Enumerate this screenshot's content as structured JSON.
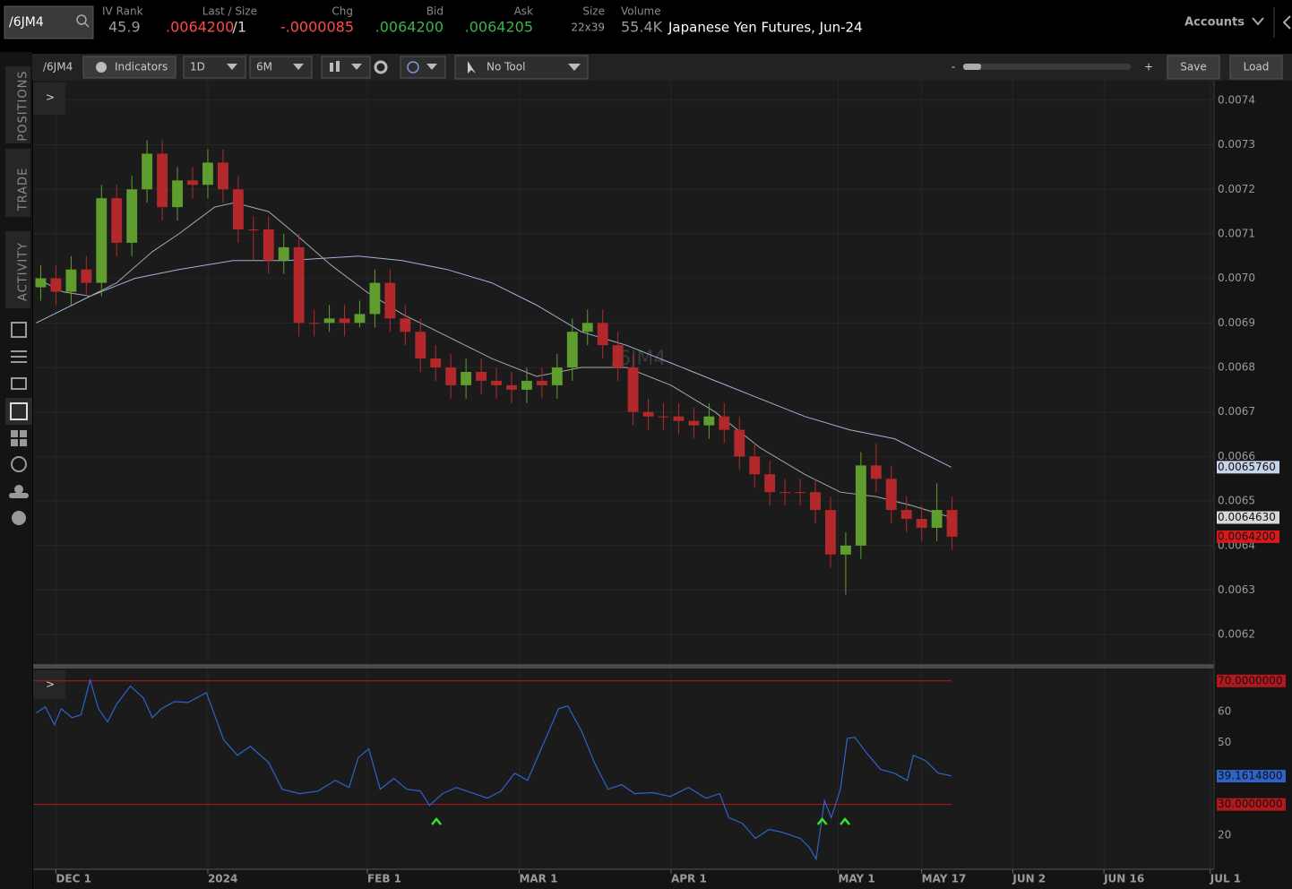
{
  "header": {
    "symbol_input": "/6JM4",
    "fields": [
      {
        "label": "IV Rank",
        "value": "45.9"
      },
      {
        "label": "Last / Size",
        "value": ".0064200",
        "extra": "/1"
      },
      {
        "label": "Chg",
        "value": "-.0000085"
      },
      {
        "label": "Bid",
        "value": ".0064200"
      },
      {
        "label": "Ask",
        "value": ".0064205"
      },
      {
        "label": "Size",
        "value": "22x39"
      },
      {
        "label": "Volume",
        "value": "55.4K"
      }
    ],
    "description": "Japanese Yen Futures, Jun-24",
    "accounts": "Accounts"
  },
  "toolbar": {
    "symbol": "/6JM4",
    "indicators": "Indicators",
    "aggregation": "1D",
    "range": "6M",
    "tool": "No Tool",
    "zoom_out": "-",
    "zoom_in": "+",
    "save": "Save",
    "load": "Load"
  },
  "sidebar": {
    "tabs": [
      "POSITIONS",
      "TRADE",
      "ACTIVITY"
    ]
  },
  "watermark": "/6JM4",
  "expand": ">",
  "x_axis": {
    "xlim": [
      -3,
      152.5
    ],
    "xticks": [
      {
        "value": 0,
        "label": "DEC 1"
      },
      {
        "value": 20,
        "label": "2024"
      },
      {
        "value": 41,
        "label": "FEB 1"
      },
      {
        "value": 61,
        "label": "MAR 1"
      },
      {
        "value": 81,
        "label": "APR 1"
      },
      {
        "value": 103,
        "label": "MAY 1"
      },
      {
        "value": 114,
        "label": "MAY 17"
      },
      {
        "value": 126,
        "label": "JUN 2"
      },
      {
        "value": 138,
        "label": "JUN 16"
      },
      {
        "value": 152,
        "label": "JUL 1"
      }
    ]
  },
  "price_chart": {
    "type": "candlestick",
    "up_color": "#5f9e2e",
    "down_color": "#b3292b",
    "ylim": [
      0.006136,
      0.007444
    ],
    "yticks": [
      0.0062,
      0.0063,
      0.0064,
      0.0065,
      0.0066,
      0.0067,
      0.0068,
      0.0069,
      {
        "value": 0.007,
        "label": "0.0070"
      },
      0.0071,
      0.0072,
      0.0073,
      0.0074
    ],
    "x": [
      -2,
      0,
      2,
      4,
      6,
      8,
      10,
      12,
      14,
      16,
      18,
      20,
      22,
      24,
      26,
      28,
      30,
      32,
      34,
      36,
      38,
      40,
      42,
      44,
      46,
      48,
      50,
      52,
      54,
      56,
      58,
      60,
      62,
      64,
      66,
      68,
      70,
      72,
      74,
      76,
      78,
      80,
      82,
      84,
      86,
      88,
      90,
      92,
      94,
      96,
      98,
      100,
      102,
      104,
      106,
      108,
      110,
      112,
      114,
      116,
      118
    ],
    "open": [
      0.00698,
      0.007,
      0.00697,
      0.00702,
      0.00699,
      0.00718,
      0.00708,
      0.0072,
      0.00728,
      0.00716,
      0.00722,
      0.00721,
      0.00726,
      0.0072,
      0.00711,
      0.00711,
      0.00704,
      0.00707,
      0.0069,
      0.0069,
      0.00691,
      0.0069,
      0.00692,
      0.00699,
      0.00691,
      0.00688,
      0.00682,
      0.0068,
      0.00676,
      0.00679,
      0.00677,
      0.00676,
      0.00675,
      0.00677,
      0.00676,
      0.0068,
      0.00688,
      0.0069,
      0.00685,
      0.0068,
      0.0067,
      0.00669,
      0.00669,
      0.00668,
      0.00667,
      0.00669,
      0.00666,
      0.0066,
      0.00656,
      0.00652,
      0.00652,
      0.00652,
      0.00648,
      0.00638,
      0.0064,
      0.00658,
      0.00655,
      0.00648,
      0.00646,
      0.00644,
      0.00648
    ],
    "high": [
      0.00703,
      0.00703,
      0.00705,
      0.00705,
      0.00721,
      0.00721,
      0.00723,
      0.00731,
      0.00731,
      0.00725,
      0.00725,
      0.00729,
      0.00729,
      0.00723,
      0.00714,
      0.00714,
      0.0071,
      0.0071,
      0.00693,
      0.00694,
      0.00694,
      0.00695,
      0.00702,
      0.00702,
      0.00694,
      0.00691,
      0.00685,
      0.00683,
      0.00682,
      0.00682,
      0.0068,
      0.00679,
      0.0068,
      0.0068,
      0.00683,
      0.00691,
      0.00693,
      0.00693,
      0.00688,
      0.00683,
      0.00673,
      0.00672,
      0.00672,
      0.00671,
      0.00672,
      0.00672,
      0.00669,
      0.00663,
      0.00659,
      0.00655,
      0.00655,
      0.00655,
      0.00651,
      0.00643,
      0.00661,
      0.00663,
      0.00658,
      0.00651,
      0.00649,
      0.00654,
      0.00651
    ],
    "low": [
      0.00695,
      0.00694,
      0.00694,
      0.00696,
      0.00696,
      0.00705,
      0.00705,
      0.00717,
      0.00713,
      0.00713,
      0.00718,
      0.00718,
      0.00717,
      0.00708,
      0.00704,
      0.00701,
      0.00701,
      0.00687,
      0.00687,
      0.00688,
      0.00687,
      0.00689,
      0.00689,
      0.00688,
      0.00685,
      0.00679,
      0.00677,
      0.00673,
      0.00673,
      0.00674,
      0.00673,
      0.00672,
      0.00672,
      0.00673,
      0.00673,
      0.00677,
      0.00685,
      0.00682,
      0.00677,
      0.00667,
      0.00666,
      0.00666,
      0.00665,
      0.00664,
      0.00664,
      0.00663,
      0.00657,
      0.00653,
      0.00649,
      0.00649,
      0.00649,
      0.00645,
      0.00635,
      0.00629,
      0.00637,
      0.00652,
      0.00645,
      0.00643,
      0.00641,
      0.00641,
      0.00639
    ],
    "close": [
      0.007,
      0.00697,
      0.00702,
      0.00699,
      0.00718,
      0.00708,
      0.0072,
      0.00728,
      0.00716,
      0.00722,
      0.00721,
      0.00726,
      0.0072,
      0.00711,
      0.00711,
      0.00704,
      0.00707,
      0.0069,
      0.0069,
      0.00691,
      0.0069,
      0.00692,
      0.00699,
      0.00691,
      0.00688,
      0.00682,
      0.0068,
      0.00676,
      0.00679,
      0.00677,
      0.00676,
      0.00675,
      0.00677,
      0.00676,
      0.0068,
      0.00688,
      0.0069,
      0.00685,
      0.0068,
      0.0067,
      0.00669,
      0.00669,
      0.00668,
      0.00667,
      0.00669,
      0.00666,
      0.0066,
      0.00656,
      0.00652,
      0.00652,
      0.00652,
      0.00648,
      0.00638,
      0.0064,
      0.00658,
      0.00655,
      0.00648,
      0.00646,
      0.00644,
      0.00648,
      0.00642
    ],
    "lines": [
      {
        "color": "#9fb3d6",
        "x": [
          -2.6,
          4.5,
          10.4,
          16.2,
          23.3,
          30.4,
          39.8,
          45.6,
          51.5,
          57.4,
          63.3,
          69.2,
          75.1,
          81,
          86.8,
          92.7,
          98.6,
          104.5,
          110.4,
          113.9,
          117.9
        ],
        "values": [
          0.0069,
          0.00696,
          0.007,
          0.00702,
          0.00704,
          0.00704,
          0.00705,
          0.00704,
          0.00702,
          0.00699,
          0.00694,
          0.00688,
          0.00685,
          0.00681,
          0.00677,
          0.00673,
          0.00669,
          0.00666,
          0.00664,
          0.00661,
          0.006576
        ],
        "last_label": "0.0065760",
        "label_bg": "#c7d3ea"
      },
      {
        "color": "#a8a8a8",
        "x": [
          -2.6,
          0.9,
          4.5,
          8,
          12.7,
          16.2,
          20.9,
          23.5,
          28,
          31.5,
          36.2,
          40.9,
          45.6,
          51.5,
          57.4,
          63.3,
          69.2,
          75.1,
          81,
          86.8,
          92.7,
          98.6,
          103.3,
          108,
          112.7,
          117.9
        ],
        "values": [
          0.007,
          0.00697,
          0.00696,
          0.00699,
          0.00706,
          0.0071,
          0.00716,
          0.00717,
          0.00715,
          0.0071,
          0.00703,
          0.00697,
          0.00692,
          0.00687,
          0.00682,
          0.00678,
          0.0068,
          0.0068,
          0.00676,
          0.0067,
          0.00662,
          0.00656,
          0.00652,
          0.00651,
          0.00649,
          0.006463
        ],
        "last_label": "0.0064630",
        "label_bg": "#d8d8d8"
      }
    ],
    "last_price": {
      "value": 0.00642,
      "label": "0.0064200",
      "color": "#d8191c"
    }
  },
  "rsi_chart": {
    "type": "line",
    "color": "#2f63c9",
    "ylim": [
      9,
      74
    ],
    "yticks": [
      20,
      50,
      60
    ],
    "reference_lines": [
      {
        "value": 70,
        "label": "70.0000000"
      },
      {
        "value": 30,
        "label": "30.0000000"
      }
    ],
    "reference_color": "#b3191c",
    "x": [
      -2.6,
      -1.4,
      -0.2,
      0.7,
      2.1,
      3.3,
      4.5,
      5.6,
      6.8,
      8,
      9.8,
      11.5,
      12.7,
      13.9,
      15.6,
      17.4,
      19.8,
      22.1,
      23.9,
      25.6,
      28,
      29.8,
      32.1,
      34.5,
      36.8,
      38.6,
      39.8,
      41.2,
      42.7,
      44.5,
      46.2,
      48,
      49.2,
      50.9,
      52.7,
      55.1,
      56.8,
      58.6,
      60.4,
      62.1,
      63.9,
      66.2,
      67.4,
      69.2,
      70.9,
      72.7,
      74.5,
      76.2,
      78.6,
      80.9,
      83.3,
      85.6,
      87.4,
      88.6,
      90.4,
      92.1,
      93.9,
      95.6,
      98,
      99.2,
      100.1,
      101.2,
      102.1,
      103.3,
      104.2,
      105.2,
      106.8,
      108.6,
      110.4,
      112.1,
      112.9,
      114.5,
      116.2,
      117.9
    ],
    "values": [
      59.6,
      61.6,
      55.8,
      61,
      58.1,
      59,
      70.3,
      61,
      56.7,
      62.5,
      68.3,
      64.5,
      58.1,
      61,
      63.3,
      63,
      66.2,
      50.9,
      45.9,
      48.8,
      43.6,
      34.9,
      33.5,
      34.3,
      37.8,
      35.5,
      45.1,
      48,
      34.9,
      38.4,
      34.9,
      34.3,
      29.7,
      33.5,
      35.5,
      33.5,
      32,
      34.3,
      40.1,
      37.8,
      48,
      61,
      61.9,
      53.8,
      43.6,
      34.9,
      36.4,
      33.5,
      33.8,
      32.6,
      35.5,
      32,
      33.5,
      25.7,
      23.9,
      19,
      21.9,
      21,
      19,
      16.1,
      12.3,
      31.2,
      25.7,
      34.9,
      51.4,
      51.7,
      46.5,
      41.3,
      40.1,
      37.8,
      45.9,
      44.2,
      40.1,
      39.3
    ],
    "last": {
      "value": 39.16148,
      "label": "39.1614800"
    },
    "signals": {
      "x": [
        50.1,
        100.9,
        103.9
      ],
      "color": "#2ee82e"
    }
  }
}
